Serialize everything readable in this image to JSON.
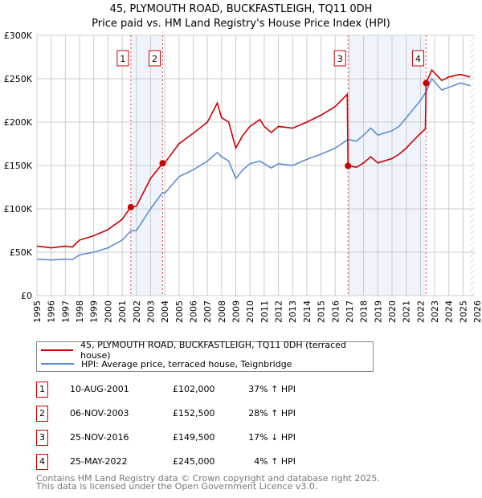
{
  "title": "45, PLYMOUTH ROAD, BUCKFASTLEIGH, TQ11 0DH",
  "subtitle": "Price paid vs. HM Land Registry's House Price Index (HPI)",
  "colors": {
    "property": "#cc0000",
    "hpi": "#5b8fd4",
    "shade": "#eef3fc"
  },
  "chart_data": {
    "type": "line",
    "title": "45, PLYMOUTH ROAD, BUCKFASTLEIGH, TQ11 0DH",
    "subtitle": "Price paid vs. HM Land Registry's House Price Index (HPI)",
    "xlim": [
      1995,
      2026
    ],
    "ylim": [
      0,
      300000
    ],
    "x_ticks": [
      "1995",
      "1996",
      "1997",
      "1998",
      "1999",
      "2000",
      "2001",
      "2002",
      "2003",
      "2004",
      "2005",
      "2006",
      "2007",
      "2008",
      "2009",
      "2010",
      "2011",
      "2012",
      "2013",
      "2014",
      "2015",
      "2016",
      "2017",
      "2018",
      "2019",
      "2020",
      "2021",
      "2022",
      "2023",
      "2024",
      "2025",
      "2026"
    ],
    "y_ticks": [
      {
        "v": 0,
        "label": "£0"
      },
      {
        "v": 50000,
        "label": "£50K"
      },
      {
        "v": 100000,
        "label": "£100K"
      },
      {
        "v": 150000,
        "label": "£150K"
      },
      {
        "v": 200000,
        "label": "£200K"
      },
      {
        "v": 250000,
        "label": "£250K"
      },
      {
        "v": 300000,
        "label": "£300K"
      }
    ],
    "grid": true,
    "shaded_periods": [
      [
        2001.61,
        2003.85
      ],
      [
        2016.9,
        2022.4
      ]
    ],
    "forecast_hatch_from": 2025.5,
    "series": [
      {
        "name": "45, PLYMOUTH ROAD, BUCKFASTLEIGH, TQ11 0DH (terraced house)",
        "color": "#cc0000",
        "x": [
          1995,
          1996,
          1997,
          1997.5,
          1998,
          1999,
          2000,
          2001,
          2001.61,
          2002,
          2003,
          2003.85,
          2004,
          2005,
          2006,
          2007,
          2007.7,
          2008,
          2008.5,
          2009,
          2009.5,
          2010,
          2010.7,
          2011,
          2011.5,
          2012,
          2013,
          2014,
          2015,
          2016,
          2016.85,
          2016.9,
          2017.5,
          2018,
          2018.5,
          2019,
          2020,
          2020.5,
          2021,
          2022,
          2022.35,
          2022.4,
          2022.8,
          2023.5,
          2024,
          2024.8,
          2025.5
        ],
        "y": [
          57000,
          55000,
          57000,
          56000,
          64000,
          69000,
          76000,
          88000,
          102000,
          103000,
          135000,
          152500,
          153000,
          175000,
          187000,
          200000,
          222000,
          205000,
          200000,
          170000,
          185000,
          195000,
          203000,
          195000,
          188000,
          195000,
          193000,
          200000,
          208000,
          218000,
          232000,
          149500,
          148000,
          153000,
          160000,
          153000,
          158000,
          163000,
          170000,
          187000,
          192000,
          245000,
          260000,
          248000,
          252000,
          255000,
          252000
        ]
      },
      {
        "name": "HPI: Average price, terraced house, Teignbridge",
        "color": "#5b8fd4",
        "x": [
          1995,
          1996,
          1997,
          1997.5,
          1998,
          1999,
          2000,
          2001,
          2001.61,
          2002,
          2003,
          2003.85,
          2004,
          2005,
          2006,
          2007,
          2007.7,
          2008,
          2008.5,
          2009,
          2009.5,
          2010,
          2010.7,
          2011,
          2011.5,
          2012,
          2013,
          2014,
          2015,
          2016,
          2016.9,
          2017.5,
          2018,
          2018.5,
          2019,
          2020,
          2020.5,
          2021,
          2022,
          2022.4,
          2022.8,
          2023.5,
          2024,
          2024.8,
          2025.5
        ],
        "y": [
          42000,
          41000,
          42000,
          41500,
          47000,
          50000,
          55000,
          64000,
          74500,
          75000,
          100000,
          119000,
          118000,
          137000,
          145000,
          155000,
          165000,
          160000,
          155000,
          135000,
          145000,
          152000,
          155000,
          152000,
          147000,
          152000,
          150000,
          157000,
          163000,
          170000,
          180000,
          178000,
          185000,
          193000,
          185000,
          190000,
          195000,
          205000,
          225000,
          235000,
          250000,
          237000,
          240000,
          245000,
          242000
        ]
      }
    ],
    "sales": [
      {
        "id": "1",
        "x": 2001.61,
        "y": 102000
      },
      {
        "id": "2",
        "x": 2003.85,
        "y": 152500
      },
      {
        "id": "3",
        "x": 2016.9,
        "y": 149500
      },
      {
        "id": "4",
        "x": 2022.4,
        "y": 245000
      }
    ]
  },
  "legend": {
    "property": "45, PLYMOUTH ROAD, BUCKFASTLEIGH, TQ11 0DH (terraced house)",
    "hpi": "HPI: Average price, terraced house, Teignbridge"
  },
  "transactions": [
    {
      "num": "1",
      "date": "10-AUG-2001",
      "price": "£102,000",
      "hpi": "37% ↑ HPI"
    },
    {
      "num": "2",
      "date": "06-NOV-2003",
      "price": "£152,500",
      "hpi": "28% ↑ HPI"
    },
    {
      "num": "3",
      "date": "25-NOV-2016",
      "price": "£149,500",
      "hpi": "17% ↓ HPI"
    },
    {
      "num": "4",
      "date": "25-MAY-2022",
      "price": "£245,000",
      "hpi": "4% ↑ HPI"
    }
  ],
  "footer": {
    "line1": "Contains HM Land Registry data © Crown copyright and database right 2025.",
    "line2": "This data is licensed under the Open Government Licence v3.0."
  }
}
